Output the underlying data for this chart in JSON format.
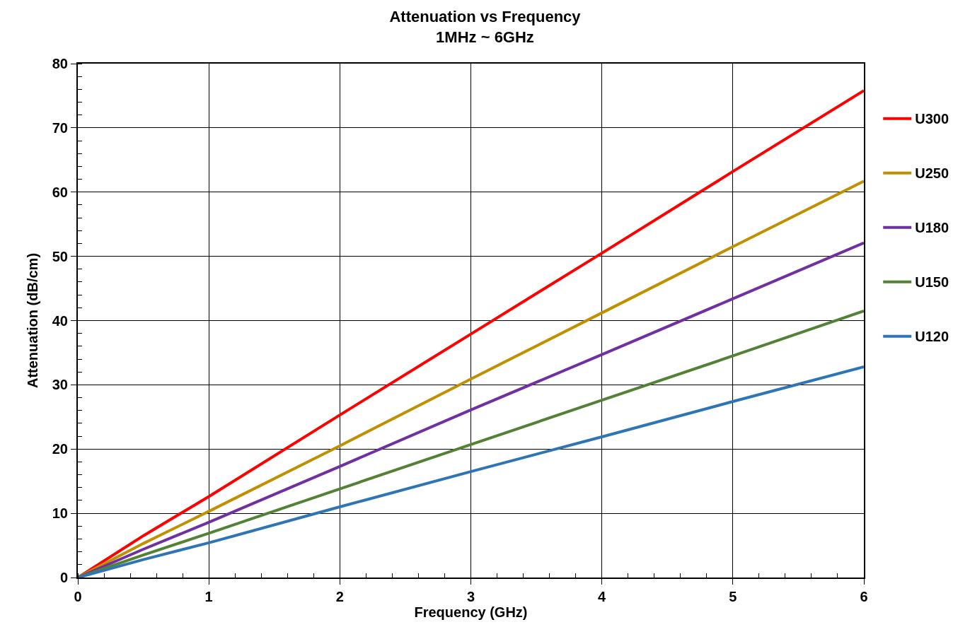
{
  "chart_data": {
    "type": "line",
    "title": "Attenuation vs Frequency",
    "subtitle": "1MHz ~ 6GHz",
    "xlabel": "Frequency (GHz)",
    "ylabel": "Attenuation (dB/cm)",
    "x": [
      0.001,
      0.5,
      1,
      2,
      3,
      4,
      5,
      6
    ],
    "series": [
      {
        "name": "U300",
        "color": "#ff0000",
        "values": [
          0,
          6.5,
          12.6,
          25.3,
          37.9,
          50.5,
          63.2,
          75.8
        ]
      },
      {
        "name": "U250",
        "color": "#bf9000",
        "values": [
          0,
          5.3,
          10.3,
          20.5,
          30.9,
          41.2,
          51.5,
          61.7
        ]
      },
      {
        "name": "U180",
        "color": "#7030a0",
        "values": [
          0,
          4.4,
          8.6,
          17.3,
          26.1,
          34.7,
          43.4,
          52.1
        ]
      },
      {
        "name": "U150",
        "color": "#548235",
        "values": [
          0,
          3.5,
          6.9,
          13.8,
          20.7,
          27.6,
          34.5,
          41.5
        ]
      },
      {
        "name": "U120",
        "color": "#2e75b6",
        "values": [
          0,
          2.8,
          5.4,
          11.0,
          16.5,
          21.9,
          27.4,
          32.8
        ]
      }
    ],
    "xlim": [
      0,
      6
    ],
    "xticks": [
      0,
      1,
      2,
      3,
      4,
      5,
      6
    ],
    "ylim": [
      0,
      80
    ],
    "yticks": [
      0,
      10,
      20,
      30,
      40,
      50,
      60,
      70,
      80
    ],
    "grid": true,
    "legend": "right",
    "marker": "none",
    "line_style": "solid"
  }
}
